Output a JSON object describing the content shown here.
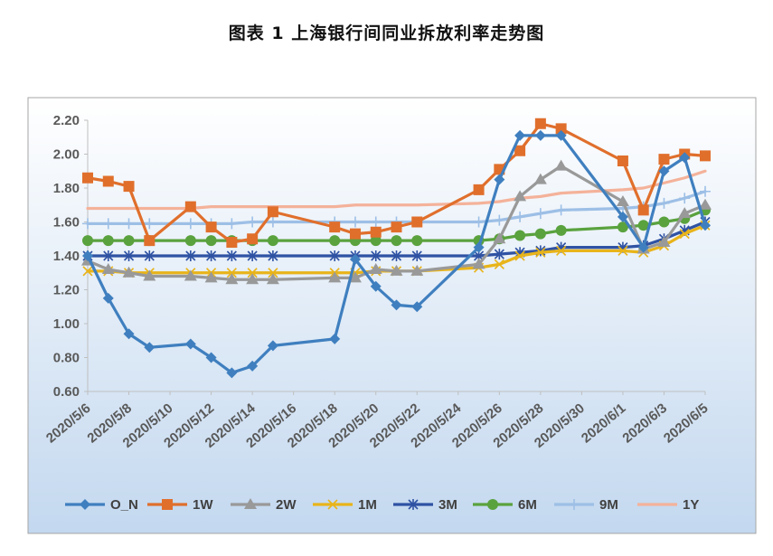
{
  "title": "图表 1  上海银行间同业拆放利率走势图",
  "chart_data": {
    "type": "line",
    "title": "图表 1  上海银行间同业拆放利率走势图",
    "xlabel": "",
    "ylabel": "",
    "ylim": [
      0.6,
      2.2
    ],
    "yticks": [
      "0.60",
      "0.80",
      "1.00",
      "1.20",
      "1.40",
      "1.60",
      "1.80",
      "2.00",
      "2.20"
    ],
    "x_tick_labels": [
      "2020/5/6",
      "2020/5/8",
      "2020/5/10",
      "2020/5/12",
      "2020/5/14",
      "2020/5/16",
      "2020/5/18",
      "2020/5/20",
      "2020/5/22",
      "2020/5/24",
      "2020/5/26",
      "2020/5/28",
      "2020/5/30",
      "2020/6/1",
      "2020/6/3",
      "2020/6/5"
    ],
    "x": [
      "2020/5/6",
      "2020/5/7",
      "2020/5/8",
      "2020/5/9",
      "2020/5/11",
      "2020/5/12",
      "2020/5/13",
      "2020/5/14",
      "2020/5/15",
      "2020/5/18",
      "2020/5/19",
      "2020/5/20",
      "2020/5/21",
      "2020/5/22",
      "2020/5/25",
      "2020/5/26",
      "2020/5/27",
      "2020/5/28",
      "2020/5/29",
      "2020/6/1",
      "2020/6/2",
      "2020/6/3",
      "2020/6/4",
      "2020/6/5"
    ],
    "legend_position": "bottom",
    "grid": false,
    "series": [
      {
        "name": "O_N",
        "color": "#3f7fbf",
        "marker": "diamond",
        "values": [
          1.4,
          1.15,
          0.94,
          0.86,
          0.88,
          0.8,
          0.71,
          0.75,
          0.87,
          0.91,
          1.38,
          1.22,
          1.11,
          1.1,
          1.45,
          1.85,
          2.11,
          2.11,
          2.11,
          1.63,
          1.45,
          1.9,
          1.98,
          1.58
        ]
      },
      {
        "name": "1W",
        "color": "#e06f2c",
        "marker": "square",
        "values": [
          1.86,
          1.84,
          1.81,
          1.49,
          1.69,
          1.57,
          1.48,
          1.5,
          1.66,
          1.57,
          1.53,
          1.54,
          1.57,
          1.6,
          1.79,
          1.91,
          2.02,
          2.18,
          2.15,
          1.96,
          1.67,
          1.97,
          2.0,
          1.99
        ]
      },
      {
        "name": "2W",
        "color": "#999999",
        "marker": "triangle",
        "values": [
          1.37,
          1.32,
          1.3,
          1.28,
          1.28,
          1.27,
          1.26,
          1.26,
          1.26,
          1.27,
          1.27,
          1.32,
          1.31,
          1.31,
          1.35,
          1.5,
          1.75,
          1.85,
          1.93,
          1.72,
          1.44,
          1.48,
          1.65,
          1.7
        ]
      },
      {
        "name": "1M",
        "color": "#e8b41a",
        "marker": "x",
        "values": [
          1.31,
          1.31,
          1.3,
          1.3,
          1.3,
          1.3,
          1.3,
          1.3,
          1.3,
          1.3,
          1.3,
          1.31,
          1.31,
          1.31,
          1.33,
          1.35,
          1.4,
          1.42,
          1.43,
          1.43,
          1.42,
          1.46,
          1.53,
          1.58
        ]
      },
      {
        "name": "3M",
        "color": "#2f52a3",
        "marker": "star",
        "values": [
          1.4,
          1.4,
          1.4,
          1.4,
          1.4,
          1.4,
          1.4,
          1.4,
          1.4,
          1.4,
          1.4,
          1.4,
          1.4,
          1.4,
          1.4,
          1.41,
          1.42,
          1.43,
          1.45,
          1.45,
          1.46,
          1.5,
          1.55,
          1.6
        ]
      },
      {
        "name": "6M",
        "color": "#5aa23e",
        "marker": "circle",
        "values": [
          1.49,
          1.49,
          1.49,
          1.49,
          1.49,
          1.49,
          1.49,
          1.49,
          1.49,
          1.49,
          1.49,
          1.49,
          1.49,
          1.49,
          1.49,
          1.5,
          1.52,
          1.53,
          1.55,
          1.57,
          1.58,
          1.6,
          1.62,
          1.67
        ]
      },
      {
        "name": "9M",
        "color": "#9dbfe6",
        "marker": "plus",
        "values": [
          1.59,
          1.59,
          1.59,
          1.59,
          1.59,
          1.59,
          1.59,
          1.6,
          1.6,
          1.6,
          1.6,
          1.6,
          1.6,
          1.6,
          1.6,
          1.61,
          1.63,
          1.65,
          1.67,
          1.68,
          1.69,
          1.71,
          1.74,
          1.78
        ]
      },
      {
        "name": "1Y",
        "color": "#f4b29a",
        "marker": "none",
        "values": [
          1.68,
          1.68,
          1.68,
          1.68,
          1.68,
          1.69,
          1.69,
          1.69,
          1.69,
          1.69,
          1.7,
          1.7,
          1.7,
          1.7,
          1.71,
          1.72,
          1.74,
          1.75,
          1.77,
          1.79,
          1.8,
          1.83,
          1.86,
          1.9
        ]
      }
    ]
  }
}
